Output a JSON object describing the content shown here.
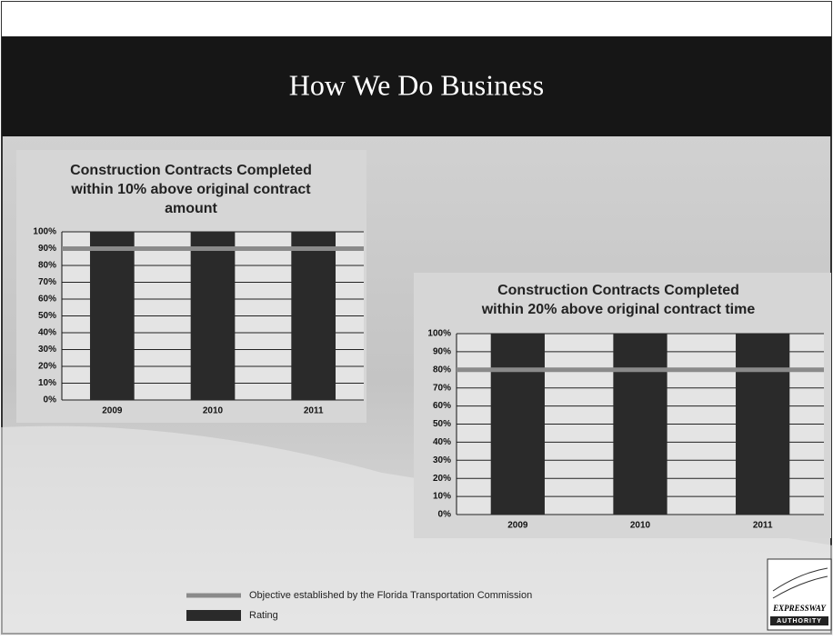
{
  "slide_title": "How We Do Business",
  "chart_data": [
    {
      "type": "bar",
      "title": "Construction Contracts Completed within 10% above original contract amount",
      "categories": [
        "2009",
        "2010",
        "2011"
      ],
      "values": [
        100,
        100,
        100
      ],
      "color": "#2a2a2a",
      "objective": 90,
      "objective_color": "#8a8a8a",
      "ylim": [
        0,
        100
      ],
      "yticks": [
        {
          "value": 0,
          "label": "0%"
        },
        {
          "value": 10,
          "label": "10%"
        },
        {
          "value": 20,
          "label": "20%"
        },
        {
          "value": 30,
          "label": "30%"
        },
        {
          "value": 40,
          "label": "40%"
        },
        {
          "value": 50,
          "label": "50%"
        },
        {
          "value": 60,
          "label": "60%"
        },
        {
          "value": 70,
          "label": "70%"
        },
        {
          "value": 80,
          "label": "80%"
        },
        {
          "value": 90,
          "label": "90%"
        },
        {
          "value": 100,
          "label": "100%"
        }
      ],
      "grid": true
    },
    {
      "type": "bar",
      "title": "Construction Contracts Completed within 20% above original contract time",
      "categories": [
        "2009",
        "2010",
        "2011"
      ],
      "values": [
        100,
        100,
        100
      ],
      "color": "#2a2a2a",
      "objective": 80,
      "objective_color": "#8a8a8a",
      "ylim": [
        0,
        100
      ],
      "yticks": [
        {
          "value": 0,
          "label": "0%"
        },
        {
          "value": 10,
          "label": "10%"
        },
        {
          "value": 20,
          "label": "20%"
        },
        {
          "value": 30,
          "label": "30%"
        },
        {
          "value": 40,
          "label": "40%"
        },
        {
          "value": 50,
          "label": "50%"
        },
        {
          "value": 60,
          "label": "60%"
        },
        {
          "value": 70,
          "label": "70%"
        },
        {
          "value": 80,
          "label": "80%"
        },
        {
          "value": 90,
          "label": "90%"
        },
        {
          "value": 100,
          "label": "100%"
        }
      ],
      "grid": true
    }
  ],
  "legend": [
    {
      "name": "Objective established by the Florida Transportation Commission",
      "color": "#8a8a8a",
      "kind": "line"
    },
    {
      "name": "Rating",
      "color": "#2a2a2a",
      "kind": "bar"
    }
  ],
  "logo": {
    "line1": "EXPRESSWAY",
    "line2": "AUTHORITY"
  }
}
